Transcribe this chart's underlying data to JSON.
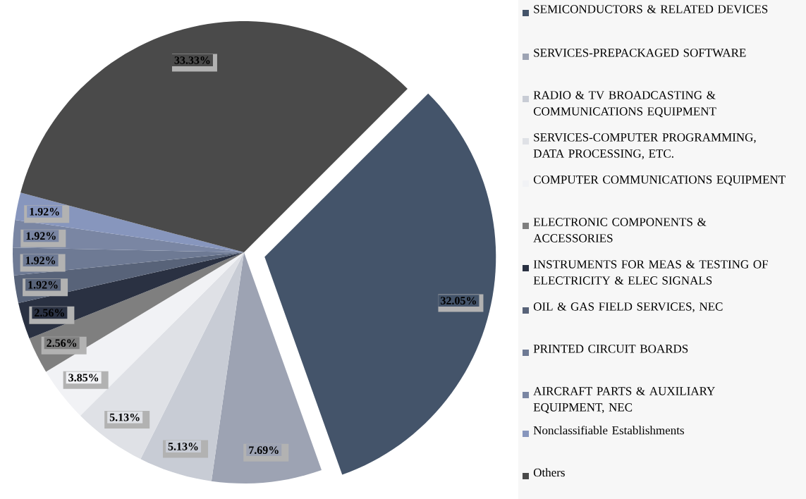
{
  "chart_data": {
    "type": "pie",
    "categories": [
      "SEMICONDUCTORS & RELATED DEVICES",
      "SERVICES-PREPACKAGED SOFTWARE",
      "RADIO & TV BROADCASTING & COMMUNICATIONS EQUIPMENT",
      "SERVICES-COMPUTER PROGRAMMING, DATA PROCESSING, ETC.",
      "COMPUTER COMMUNICATIONS EQUIPMENT",
      "ELECTRONIC COMPONENTS & ACCESSORIES",
      "INSTRUMENTS FOR MEAS & TESTING OF ELECTRICITY & ELEC SIGNALS",
      "OIL & GAS FIELD SERVICES, NEC",
      "PRINTED CIRCUIT BOARDS",
      "AIRCRAFT PARTS & AUXILIARY EQUIPMENT, NEC",
      "Nonclassifiable Establishments",
      "Others"
    ],
    "values": [
      32.05,
      7.69,
      5.13,
      5.13,
      3.85,
      2.56,
      2.56,
      1.92,
      1.92,
      1.92,
      1.92,
      33.33
    ],
    "value_labels": [
      "32.05%",
      "7.69%",
      "5.13%",
      "5.13%",
      "3.85%",
      "2.56%",
      "2.56%",
      "1.92%",
      "1.92%",
      "1.92%",
      "1.92%",
      "33.33%"
    ],
    "colors": [
      "#44546a",
      "#9da3b3",
      "#c8ccd5",
      "#dfe1e6",
      "#f1f2f5",
      "#7f7f7f",
      "#2a3142",
      "#586379",
      "#6e7a94",
      "#7a86a3",
      "#8796bd",
      "#4a4a4a"
    ],
    "legend": "right"
  }
}
